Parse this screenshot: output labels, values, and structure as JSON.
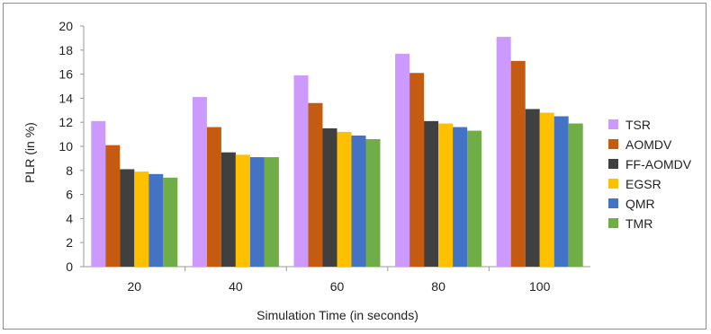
{
  "chart_data": {
    "type": "bar",
    "categories": [
      "20",
      "40",
      "60",
      "80",
      "100"
    ],
    "series": [
      {
        "name": "TSR",
        "color": "#cc99ff",
        "values": [
          12.1,
          14.1,
          15.9,
          17.7,
          19.1
        ]
      },
      {
        "name": "AOMDV",
        "color": "#c55a11",
        "values": [
          10.1,
          11.6,
          13.6,
          16.1,
          17.1
        ]
      },
      {
        "name": "FF-AOMDV",
        "color": "#404040",
        "values": [
          8.1,
          9.5,
          11.5,
          12.1,
          13.1
        ]
      },
      {
        "name": "EGSR",
        "color": "#ffc000",
        "values": [
          7.9,
          9.3,
          11.2,
          11.9,
          12.8
        ]
      },
      {
        "name": "QMR",
        "color": "#4472c4",
        "values": [
          7.7,
          9.1,
          10.9,
          11.6,
          12.5
        ]
      },
      {
        "name": "TMR",
        "color": "#70ad47",
        "values": [
          7.4,
          9.1,
          10.6,
          11.3,
          11.9
        ]
      }
    ],
    "xlabel": "Simulation Time (in seconds)",
    "ylabel": "PLR (in %)",
    "ylim": [
      0,
      20
    ],
    "yticks": [
      "0",
      "2",
      "4",
      "6",
      "8",
      "10",
      "12",
      "14",
      "16",
      "18",
      "20"
    ],
    "grid": false,
    "legend_position": "right"
  }
}
